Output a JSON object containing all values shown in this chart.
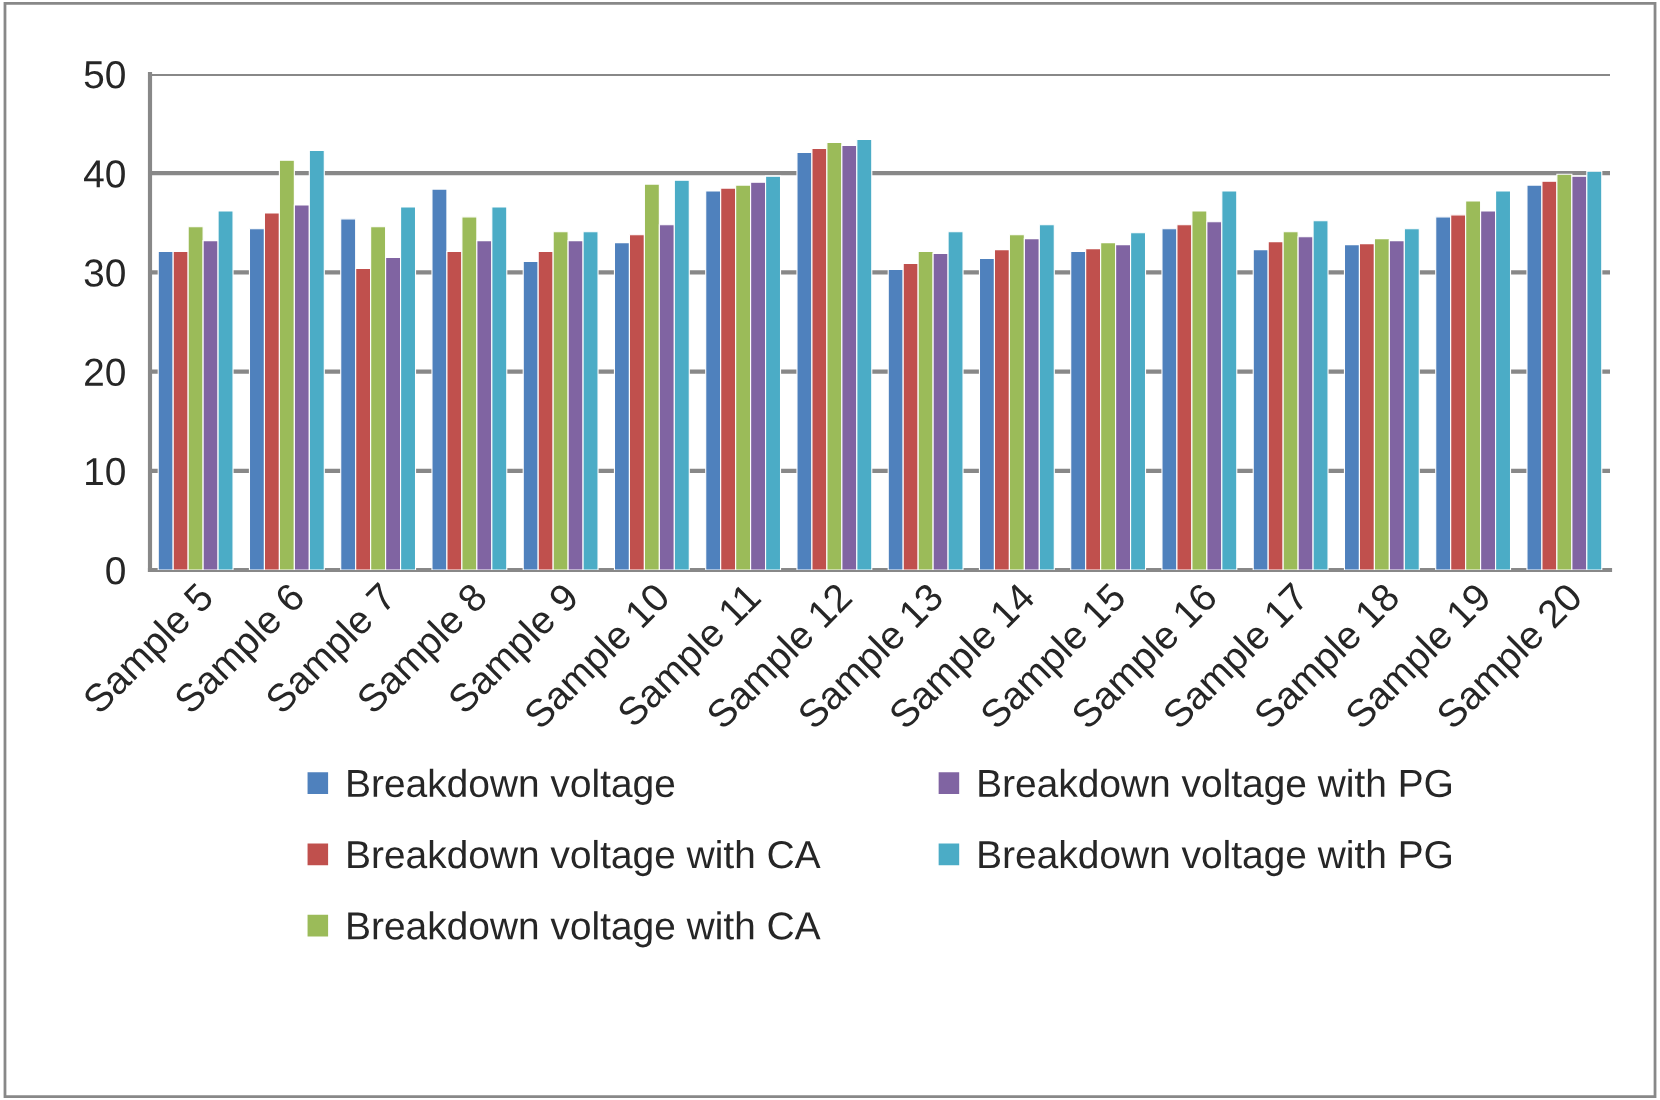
{
  "chart_data": {
    "type": "bar",
    "categories": [
      "Sample 5",
      "Sample 6",
      "Sample 7",
      "Sample 8",
      "Sample 9",
      "Sample 10",
      "Sample 11",
      "Sample 12",
      "Sample 13",
      "Sample 14",
      "Sample 15",
      "Sample 16",
      "Sample 17",
      "Sample 18",
      "Sample 19",
      "Sample 20"
    ],
    "series": [
      {
        "name": "Breakdown voltage",
        "color": "#4f81bd",
        "values": [
          32.1,
          34.4,
          35.4,
          38.4,
          31.1,
          33.0,
          38.2,
          42.1,
          30.3,
          31.4,
          32.1,
          34.4,
          32.3,
          32.8,
          35.6,
          38.8
        ]
      },
      {
        "name": "Breakdown voltage with CA",
        "color": "#c0504d",
        "values": [
          32.1,
          36.0,
          30.4,
          32.1,
          32.1,
          33.8,
          38.5,
          42.5,
          30.9,
          32.3,
          32.4,
          34.8,
          33.1,
          32.9,
          35.8,
          39.2
        ]
      },
      {
        "name": "Breakdown voltage with CA",
        "color": "#9bbb59",
        "values": [
          34.6,
          41.3,
          34.6,
          35.6,
          34.1,
          38.9,
          38.8,
          43.1,
          32.1,
          33.8,
          33.0,
          36.2,
          34.1,
          33.4,
          37.2,
          39.9
        ]
      },
      {
        "name": "Breakdown voltage with PG",
        "color": "#8064a2",
        "values": [
          33.2,
          36.8,
          31.5,
          33.2,
          33.2,
          34.8,
          39.1,
          42.8,
          31.9,
          33.4,
          32.8,
          35.1,
          33.6,
          33.2,
          36.2,
          39.7
        ]
      },
      {
        "name": "Breakdown voltage with PG",
        "color": "#4bacc6",
        "values": [
          36.2,
          42.3,
          36.6,
          36.6,
          34.1,
          39.3,
          39.7,
          43.4,
          34.1,
          34.8,
          34.0,
          38.2,
          35.2,
          34.4,
          38.2,
          40.2
        ]
      }
    ],
    "ylim": [
      0,
      50
    ],
    "yticks": [
      0,
      10,
      20,
      30,
      40,
      50
    ],
    "grid": "y",
    "legend": "bottom"
  }
}
